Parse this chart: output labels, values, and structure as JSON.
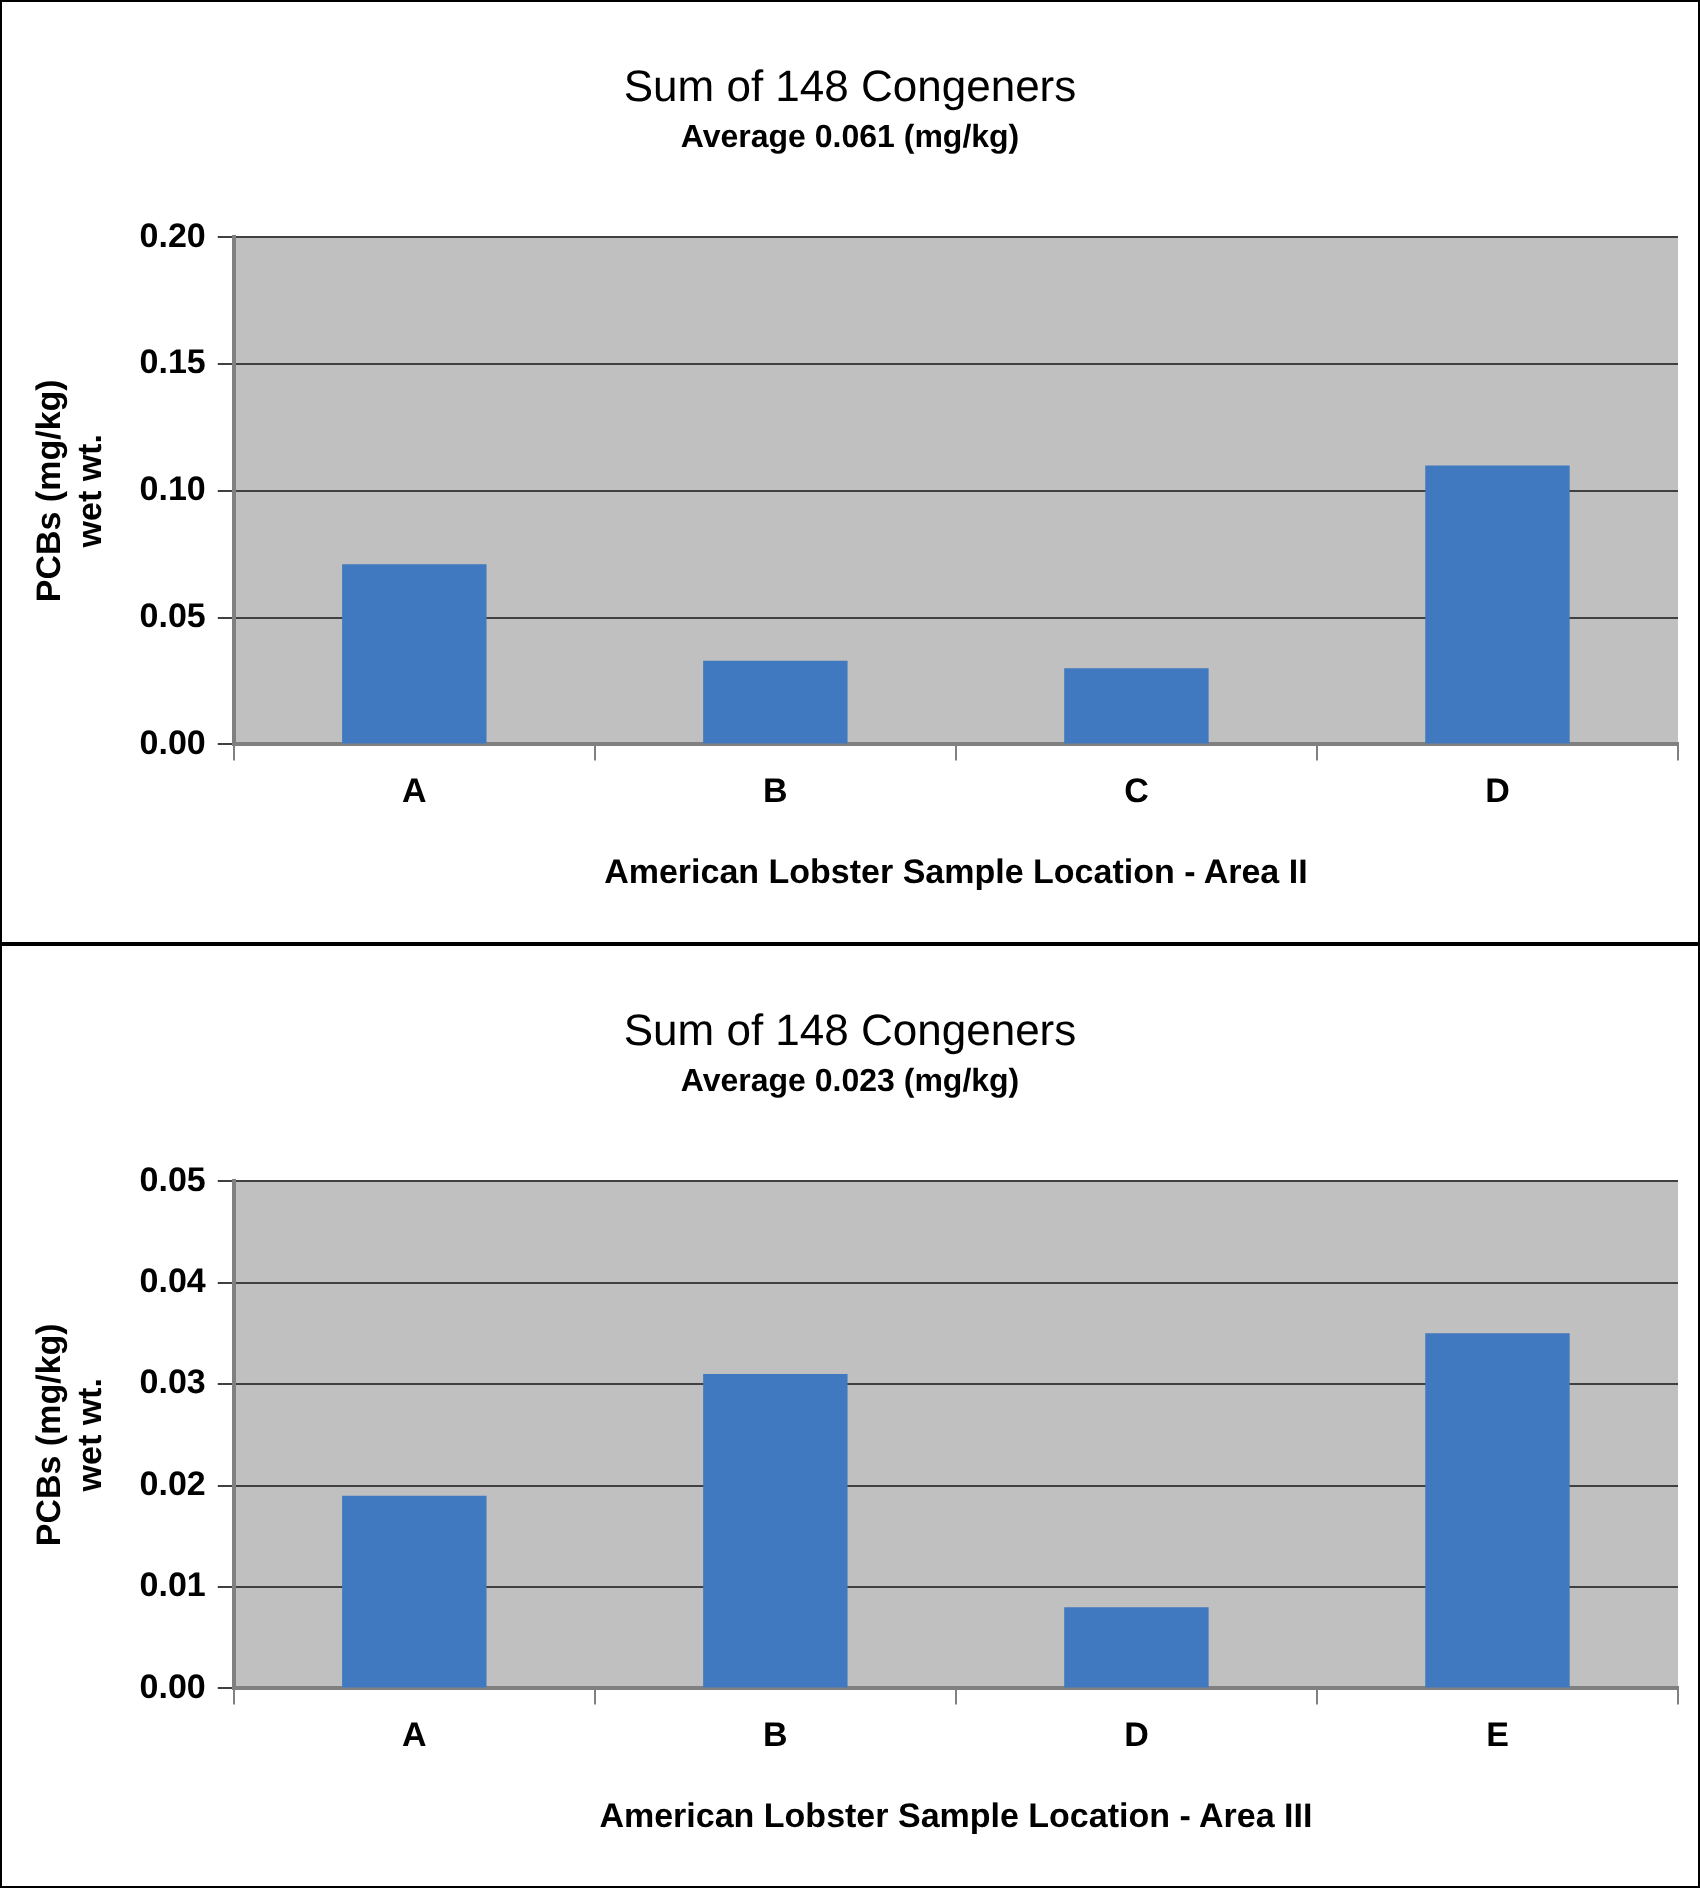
{
  "chart_data": [
    {
      "type": "bar",
      "title": "Sum of 148 Congeners",
      "subtitle": "Average 0.061 (mg/kg)",
      "xlabel": "American Lobster Sample Location - Area II",
      "ylabel": "PCBs (mg/kg)\nwet wt.",
      "categories": [
        "A",
        "B",
        "C",
        "D"
      ],
      "values": [
        0.071,
        0.033,
        0.03,
        0.11
      ],
      "color": "#4079bf",
      "ylim": [
        0,
        0.2
      ],
      "yticks": [
        {
          "value": 0,
          "label": "0.00"
        },
        {
          "value": 0.05,
          "label": "0.05"
        },
        {
          "value": 0.1,
          "label": "0.10"
        },
        {
          "value": 0.15,
          "label": "0.15"
        },
        {
          "value": 0.2,
          "label": "0.20"
        }
      ],
      "grid": "y"
    },
    {
      "type": "bar",
      "title": "Sum of 148 Congeners",
      "subtitle": "Average 0.023 (mg/kg)",
      "xlabel": "American Lobster Sample Location - Area III",
      "ylabel": "PCBs (mg/kg)\nwet wt.",
      "categories": [
        "A",
        "B",
        "D",
        "E"
      ],
      "values": [
        0.019,
        0.031,
        0.008,
        0.035
      ],
      "color": "#4079bf",
      "ylim": [
        0,
        0.05
      ],
      "yticks": [
        {
          "value": 0,
          "label": "0.00"
        },
        {
          "value": 0.01,
          "label": "0.01"
        },
        {
          "value": 0.02,
          "label": "0.02"
        },
        {
          "value": 0.03,
          "label": "0.03"
        },
        {
          "value": 0.04,
          "label": "0.04"
        },
        {
          "value": 0.05,
          "label": "0.05"
        }
      ],
      "grid": "y"
    }
  ]
}
